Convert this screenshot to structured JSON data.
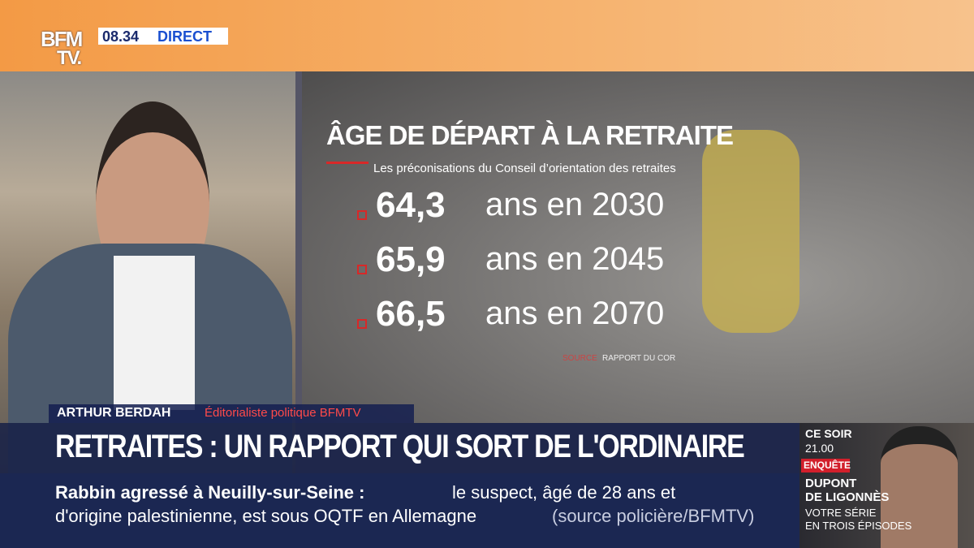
{
  "header": {
    "logo_top": "BFM",
    "logo_bottom": "TV.",
    "time": "08.34",
    "live": "DIRECT"
  },
  "graphic": {
    "title": "ÂGE DE DÉPART À LA RETRAITE",
    "subtitle": "Les préconisations du Conseil d’orientation des retraites",
    "rows": [
      {
        "value": "64,3",
        "label": "ans en 2030"
      },
      {
        "value": "65,9",
        "label": "ans en 2045"
      },
      {
        "value": "66,5",
        "label": "ans en 2070"
      }
    ],
    "source_label": "SOURCE",
    "source": "RAPPORT DU COR"
  },
  "guest": {
    "name": "ARTHUR BERDAH",
    "role": "Éditorialiste politique BFMTV"
  },
  "headline": "RETRAITES : UN RAPPORT QUI SORT DE L'ORDINAIRE",
  "ticker": {
    "lead": "Rabbin agressé à Neuilly-sur-Seine :",
    "line1": "le suspect, âgé de 28 ans et",
    "line2": "d'origine palestinienne, est sous OQTF en Allemagne",
    "source": "(source policière/BFMTV)"
  },
  "promo": {
    "when": "CE SOIR",
    "time": "21.00",
    "tag": "ENQUÊTE",
    "title1": "DUPONT",
    "title2": "DE LIGONNÈS",
    "sub1": "VOTRE SÉRIE",
    "sub2": "EN TROIS ÉPISODES"
  }
}
